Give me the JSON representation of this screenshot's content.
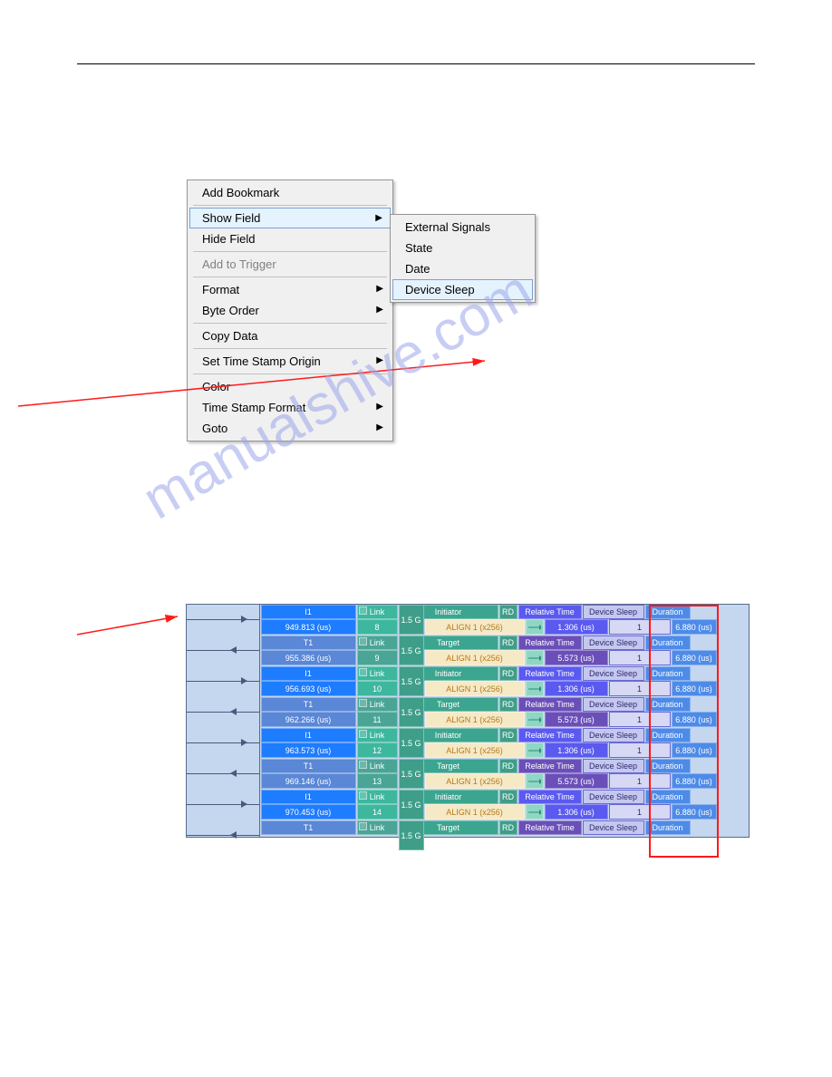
{
  "menu": {
    "items": [
      {
        "label": "Add Bookmark"
      },
      {
        "sep": true
      },
      {
        "label": "Show Field",
        "arrow": true,
        "hover": true
      },
      {
        "label": "Hide Field"
      },
      {
        "sep": true
      },
      {
        "label": "Add to Trigger",
        "disabled": true
      },
      {
        "sep": true
      },
      {
        "label": "Format",
        "arrow": true
      },
      {
        "label": "Byte Order",
        "arrow": true
      },
      {
        "sep": true
      },
      {
        "label": "Copy Data"
      },
      {
        "sep": true
      },
      {
        "label": "Set Time Stamp Origin",
        "arrow": true
      },
      {
        "sep": true
      },
      {
        "label": "Color"
      },
      {
        "label": "Time Stamp Format",
        "arrow": true
      },
      {
        "label": "Goto",
        "arrow": true
      }
    ],
    "sub": [
      {
        "label": "External Signals"
      },
      {
        "label": "State"
      },
      {
        "label": "Date"
      },
      {
        "label": "Device Sleep",
        "hover": true
      }
    ]
  },
  "watermark": "manualshive.com",
  "colors": {
    "i_id": "#1e7cff",
    "t_id": "#5a87d6",
    "link_i": "#3db79e",
    "link_t": "#4aa596",
    "rate": "#3f9e89",
    "role_hdr": "#3ca58f",
    "role_sub_bg": "#f6e9c6",
    "role_sub_fg": "#b57a1a",
    "rd": "#3f9e89",
    "conn_bg": "#8fd6c4",
    "time_i": "#5a5af0",
    "time_t": "#6a4fb8",
    "dev_hdr": "#c5c7f0",
    "dev_val": "#d6d8f4",
    "dev_border": "#6a6ad4",
    "dur_hdr": "#4e8be8",
    "dur_val": "#4e8be8"
  },
  "trace": {
    "link_label": "Link",
    "rate": "1.5 G",
    "role_sub": "ALIGN 1  (x256)",
    "rd": "RD",
    "rel_time": "Relative Time",
    "dev_sleep": "Device Sleep",
    "duration": "Duration",
    "dur_val": "6.880 (us)",
    "rows": [
      {
        "dir": "r",
        "id": "I1",
        "ts": "949.813 (us)",
        "link": "8",
        "role": "Initiator",
        "rt": "1.306 (us)",
        "ds": "1",
        "type": "i"
      },
      {
        "dir": "l",
        "id": "T1",
        "ts": "955.386 (us)",
        "link": "9",
        "role": "Target",
        "rt": "5.573 (us)",
        "ds": "1",
        "type": "t"
      },
      {
        "dir": "r",
        "id": "I1",
        "ts": "956.693 (us)",
        "link": "10",
        "role": "Initiator",
        "rt": "1.306 (us)",
        "ds": "1",
        "type": "i"
      },
      {
        "dir": "l",
        "id": "T1",
        "ts": "962.266 (us)",
        "link": "11",
        "role": "Target",
        "rt": "5.573 (us)",
        "ds": "1",
        "type": "t"
      },
      {
        "dir": "r",
        "id": "I1",
        "ts": "963.573 (us)",
        "link": "12",
        "role": "Initiator",
        "rt": "1.306 (us)",
        "ds": "1",
        "type": "i"
      },
      {
        "dir": "l",
        "id": "T1",
        "ts": "969.146 (us)",
        "link": "13",
        "role": "Target",
        "rt": "5.573 (us)",
        "ds": "1",
        "type": "t"
      },
      {
        "dir": "r",
        "id": "I1",
        "ts": "970.453 (us)",
        "link": "14",
        "role": "Initiator",
        "rt": "1.306 (us)",
        "ds": "1",
        "type": "i"
      },
      {
        "dir": "l",
        "id": "T1",
        "ts": "",
        "link": "",
        "role": "Target",
        "rt": "",
        "ds": "",
        "type": "t",
        "last": true
      }
    ]
  }
}
